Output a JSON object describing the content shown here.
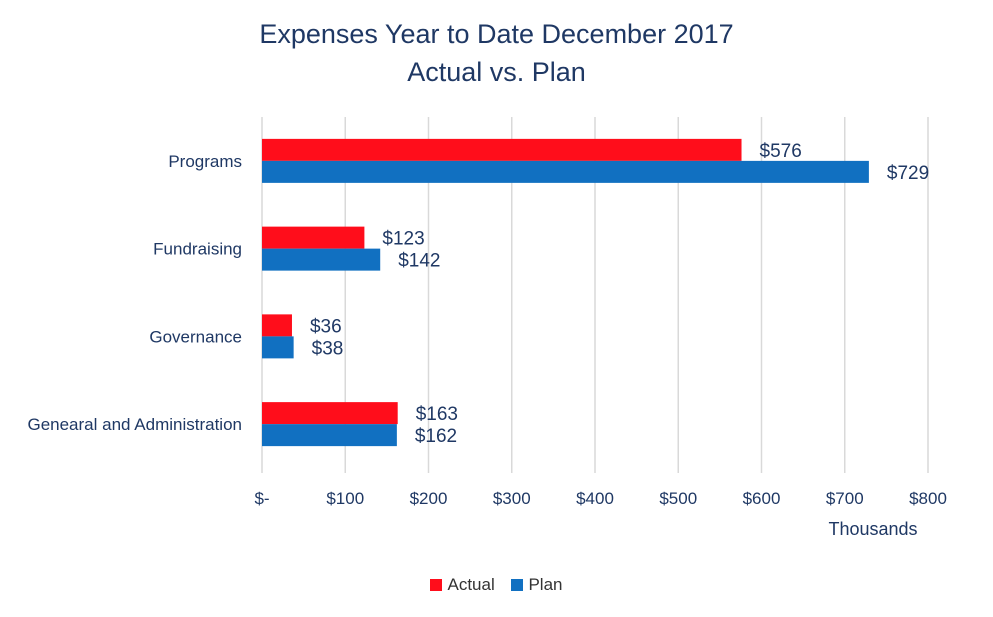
{
  "chart_data": {
    "type": "bar",
    "orientation": "horizontal",
    "title": "Expenses Year to Date December 2017",
    "subtitle": "Actual vs. Plan",
    "xlabel": "Thousands",
    "ylabel": "",
    "xlim": [
      0,
      800
    ],
    "x_ticks": [
      0,
      100,
      200,
      300,
      400,
      500,
      600,
      700,
      800
    ],
    "x_tick_labels": [
      "$-",
      "$100",
      "$200",
      "$300",
      "$400",
      "$500",
      "$600",
      "$700",
      "$800"
    ],
    "grid": "vertical",
    "legend_position": "bottom",
    "categories": [
      "Programs",
      "Fundraising",
      "Governance",
      "Genearal and Administration"
    ],
    "series": [
      {
        "name": "Actual",
        "color": "#ff0d1b",
        "values": [
          576,
          123,
          36,
          163
        ],
        "labels": [
          "$576",
          "$123",
          "$36",
          "$163"
        ]
      },
      {
        "name": "Plan",
        "color": "#1170c1",
        "values": [
          729,
          142,
          38,
          162
        ],
        "labels": [
          "$729",
          "$142",
          "$38",
          "$162"
        ]
      }
    ]
  }
}
